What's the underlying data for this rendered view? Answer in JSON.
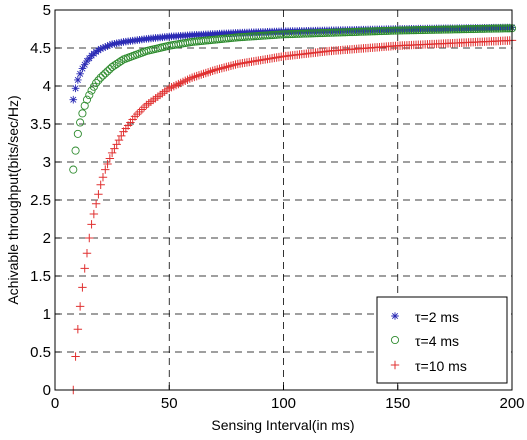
{
  "chart_data": {
    "type": "scatter",
    "xlabel": "Sensing Interval(in ms)",
    "ylabel": "Achivable throughput(bits/sec/Hz)",
    "xlim": [
      0,
      200
    ],
    "ylim": [
      0,
      5
    ],
    "x_ticks": [
      0,
      50,
      100,
      150,
      200
    ],
    "y_ticks": [
      0,
      0.5,
      1,
      1.5,
      2,
      2.5,
      3,
      3.5,
      4,
      4.5,
      5
    ],
    "x_tick_labels": [
      "0",
      "50",
      "100",
      "150",
      "200"
    ],
    "y_tick_labels": [
      "0",
      "0.5",
      "1",
      "1.5",
      "2",
      "2.5",
      "3",
      "3.5",
      "4",
      "4.5",
      "5"
    ],
    "grid": true,
    "legend_position": "bottom-right",
    "x_range": [
      8,
      200
    ],
    "series": [
      {
        "name": "τ=2 ms",
        "marker": "asterisk",
        "color": "#2a2ab4",
        "x": [
          8,
          9,
          10,
          11,
          12,
          13,
          14,
          16,
          18,
          20,
          25,
          30,
          40,
          50,
          60,
          80,
          100,
          150,
          200
        ],
        "values": [
          3.82,
          3.97,
          4.08,
          4.16,
          4.23,
          4.28,
          4.33,
          4.4,
          4.45,
          4.49,
          4.55,
          4.58,
          4.62,
          4.65,
          4.67,
          4.7,
          4.72,
          4.75,
          4.77
        ]
      },
      {
        "name": "τ=4 ms",
        "marker": "circle",
        "color": "#2e8b2e",
        "x": [
          8,
          9,
          10,
          11,
          12,
          13,
          14,
          16,
          18,
          20,
          25,
          30,
          40,
          50,
          60,
          80,
          100,
          150,
          200
        ],
        "values": [
          2.9,
          3.15,
          3.37,
          3.52,
          3.64,
          3.74,
          3.82,
          3.94,
          4.04,
          4.11,
          4.25,
          4.35,
          4.46,
          4.53,
          4.58,
          4.64,
          4.68,
          4.73,
          4.76
        ]
      },
      {
        "name": "τ=10 ms",
        "marker": "plus",
        "color": "#e03030",
        "x": [
          8,
          9,
          10,
          11,
          12,
          13,
          14,
          15,
          16,
          18,
          20,
          22,
          25,
          30,
          35,
          40,
          50,
          60,
          70,
          80,
          100,
          120,
          150,
          200
        ],
        "values": [
          0.0,
          0.44,
          0.8,
          1.1,
          1.35,
          1.6,
          1.8,
          2.0,
          2.18,
          2.45,
          2.7,
          2.9,
          3.12,
          3.4,
          3.6,
          3.75,
          3.97,
          4.11,
          4.21,
          4.29,
          4.39,
          4.46,
          4.53,
          4.6
        ]
      }
    ]
  }
}
